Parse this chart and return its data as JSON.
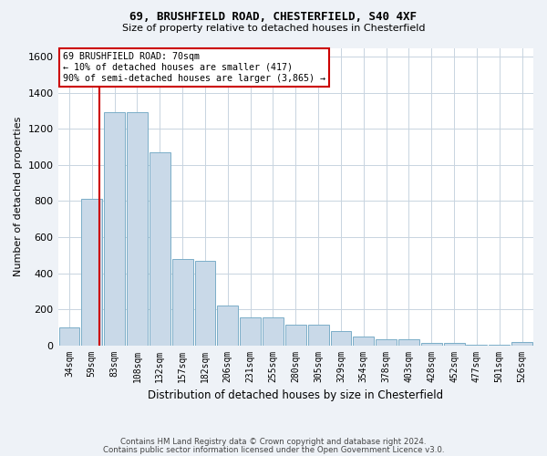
{
  "title1": "69, BRUSHFIELD ROAD, CHESTERFIELD, S40 4XF",
  "title2": "Size of property relative to detached houses in Chesterfield",
  "xlabel": "Distribution of detached houses by size in Chesterfield",
  "ylabel": "Number of detached properties",
  "bar_labels": [
    "34sqm",
    "59sqm",
    "83sqm",
    "108sqm",
    "132sqm",
    "157sqm",
    "182sqm",
    "206sqm",
    "231sqm",
    "255sqm",
    "280sqm",
    "305sqm",
    "329sqm",
    "354sqm",
    "378sqm",
    "403sqm",
    "428sqm",
    "452sqm",
    "477sqm",
    "501sqm",
    "526sqm"
  ],
  "bar_values": [
    100,
    810,
    1295,
    1295,
    1070,
    480,
    470,
    220,
    155,
    155,
    115,
    115,
    80,
    50,
    35,
    35,
    15,
    15,
    5,
    5,
    20
  ],
  "bar_color": "#c9d9e8",
  "bar_edge_color": "#7baec8",
  "ylim": [
    0,
    1650
  ],
  "yticks": [
    0,
    200,
    400,
    600,
    800,
    1000,
    1200,
    1400,
    1600
  ],
  "vline_x": 1.35,
  "vline_color": "#cc0000",
  "annotation_line1": "69 BRUSHFIELD ROAD: 70sqm",
  "annotation_line2": "← 10% of detached houses are smaller (417)",
  "annotation_line3": "90% of semi-detached houses are larger (3,865) →",
  "annotation_box_color": "#cc0000",
  "footer1": "Contains HM Land Registry data © Crown copyright and database right 2024.",
  "footer2": "Contains public sector information licensed under the Open Government Licence v3.0.",
  "bg_color": "#eef2f7",
  "plot_bg_color": "#ffffff",
  "grid_color": "#c8d4e0"
}
